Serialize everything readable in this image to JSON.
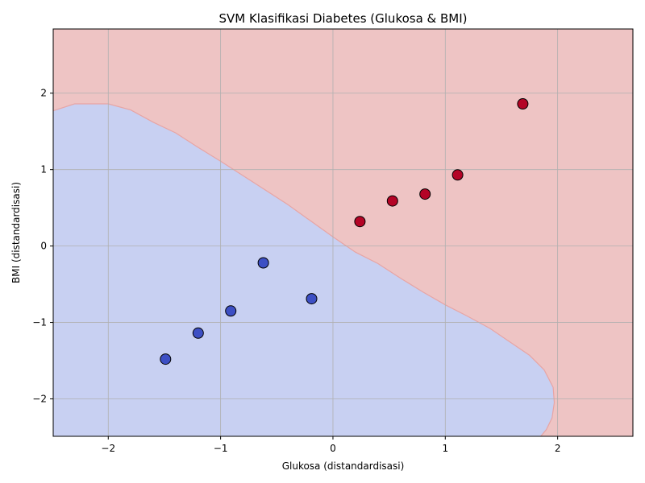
{
  "chart_data": {
    "type": "scatter",
    "title": "SVM Klasifikasi Diabetes (Glukosa & BMI)",
    "xlabel": "Glukosa (distandardisasi)",
    "ylabel": "BMI (distandardisasi)",
    "xlim": [
      -2.49,
      2.67
    ],
    "ylim": [
      -2.49,
      2.84
    ],
    "x_ticks": [
      -2,
      -1,
      0,
      1,
      2
    ],
    "y_ticks": [
      -2,
      -1,
      0,
      1,
      2
    ],
    "x_tick_labels": [
      "−2",
      "−1",
      "0",
      "1",
      "2"
    ],
    "y_tick_labels": [
      "−2",
      "−1",
      "0",
      "1",
      "2"
    ],
    "grid": true,
    "colors": {
      "region_class0": "#c8d0f2",
      "region_class1": "#eec4c4",
      "boundary": "#e7a5a5",
      "point_class0": "#3d4fc4",
      "point_class1": "#b40426",
      "grid": "#b0b0b0"
    },
    "decision_boundary": [
      [
        -2.49,
        1.77
      ],
      [
        -2.3,
        1.86
      ],
      [
        -2.0,
        1.86
      ],
      [
        -1.8,
        1.78
      ],
      [
        -1.6,
        1.62
      ],
      [
        -1.4,
        1.48
      ],
      [
        -1.2,
        1.29
      ],
      [
        -1.0,
        1.11
      ],
      [
        -0.8,
        0.92
      ],
      [
        -0.6,
        0.73
      ],
      [
        -0.4,
        0.54
      ],
      [
        -0.2,
        0.33
      ],
      [
        0.0,
        0.12
      ],
      [
        0.2,
        -0.08
      ],
      [
        0.4,
        -0.23
      ],
      [
        0.6,
        -0.42
      ],
      [
        0.8,
        -0.6
      ],
      [
        1.0,
        -0.77
      ],
      [
        1.2,
        -0.92
      ],
      [
        1.4,
        -1.08
      ],
      [
        1.6,
        -1.28
      ],
      [
        1.75,
        -1.43
      ],
      [
        1.88,
        -1.62
      ],
      [
        1.96,
        -1.85
      ],
      [
        1.97,
        -2.05
      ],
      [
        1.95,
        -2.25
      ],
      [
        1.9,
        -2.4
      ],
      [
        1.85,
        -2.49
      ]
    ],
    "series": [
      {
        "class": 0,
        "points": [
          {
            "x": -1.49,
            "y": -1.48
          },
          {
            "x": -1.2,
            "y": -1.14
          },
          {
            "x": -0.91,
            "y": -0.85
          },
          {
            "x": -0.62,
            "y": -0.22
          },
          {
            "x": -0.19,
            "y": -0.69
          }
        ]
      },
      {
        "class": 1,
        "points": [
          {
            "x": 0.24,
            "y": 0.32
          },
          {
            "x": 0.53,
            "y": 0.59
          },
          {
            "x": 0.82,
            "y": 0.68
          },
          {
            "x": 1.11,
            "y": 0.93
          },
          {
            "x": 1.69,
            "y": 1.86
          }
        ]
      }
    ]
  }
}
